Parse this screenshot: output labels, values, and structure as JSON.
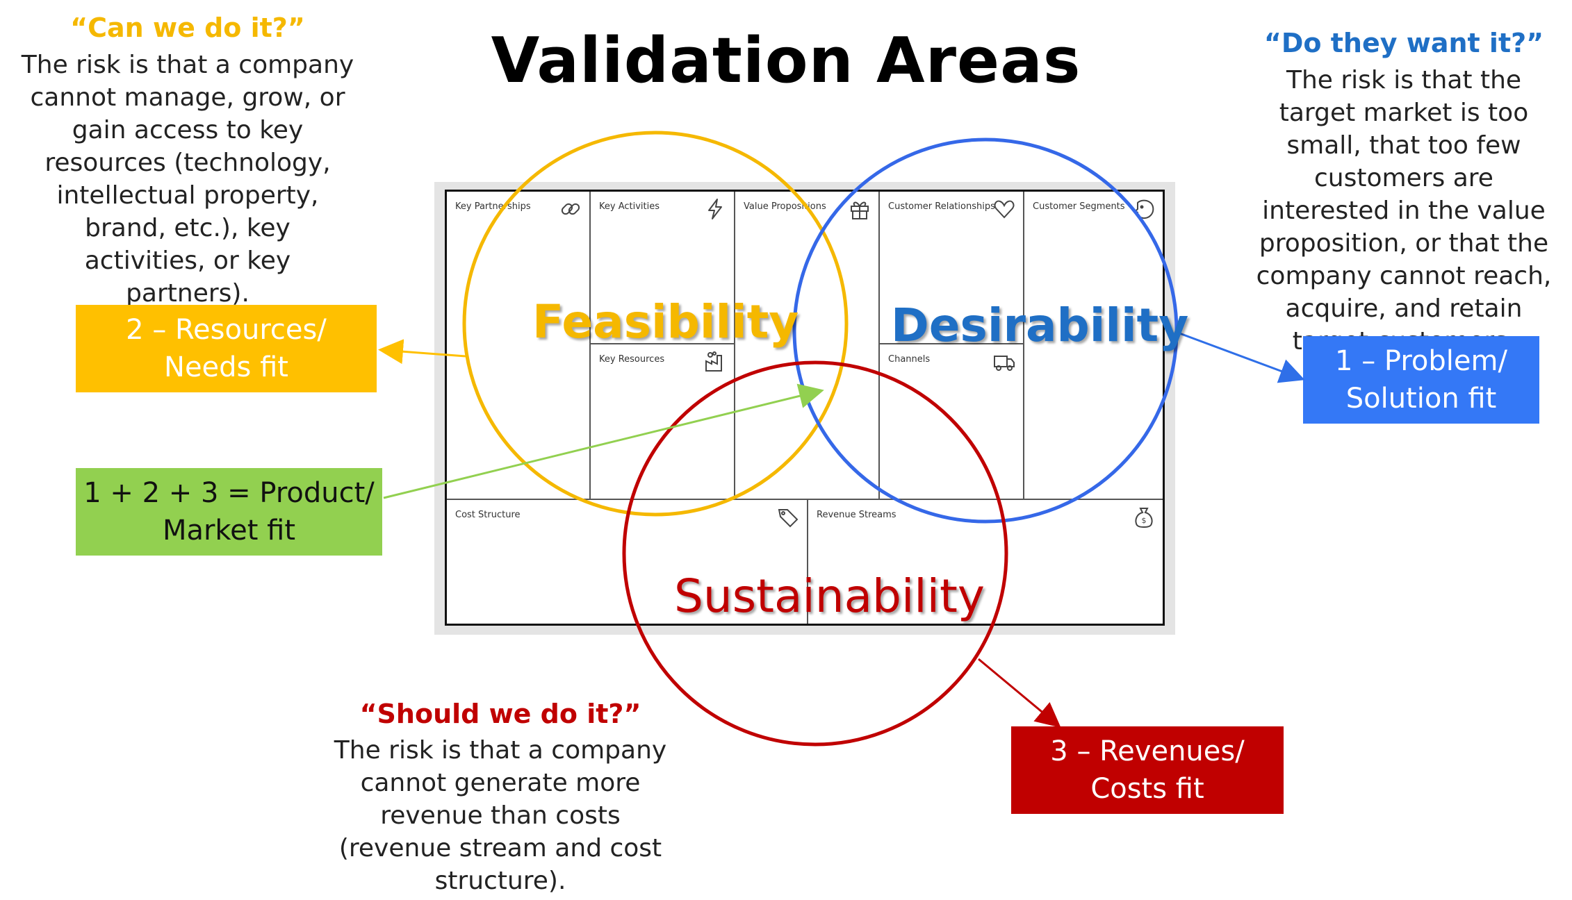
{
  "title": "Validation Areas",
  "feasibility": {
    "question": "“Can we do it?”",
    "description": "The risk is that a company cannot manage, grow, or gain access to key resources (technology, intellectual property, brand, etc.), key activities, or key partners).",
    "circle_label": "Feasibility",
    "fit_label": "2 – Resources/ Needs fit",
    "color": "#F5B800"
  },
  "desirability": {
    "question": "“Do they want it?”",
    "description": "The risk is that the target market is too small, that too few customers are interested in the value proposition, or that the company cannot reach, acquire, and retain target customers.",
    "circle_label": "Desirability",
    "fit_label": "1 – Problem/ Solution fit",
    "color": "#3568E8"
  },
  "sustainability": {
    "question": "“Should we do it?”",
    "description": "The risk is that a company cannot generate more revenue than costs (revenue stream and cost structure).",
    "circle_label": "Sustainability",
    "fit_label": "3 – Revenues/ Costs fit",
    "color": "#C00000"
  },
  "product_market": {
    "fit_label": "1 + 2 + 3 = Product/ Market fit",
    "color": "#92D050"
  },
  "canvas": {
    "key_partnerships": "Key Partnerships",
    "key_activities": "Key Activities",
    "value_propositions": "Value Propositions",
    "customer_relationships": "Customer Relationships",
    "customer_segments": "Customer Segments",
    "key_resources": "Key Resources",
    "channels": "Channels",
    "cost_structure": "Cost Structure",
    "revenue_streams": "Revenue Streams"
  },
  "icons": [
    "link-icon",
    "lightning-icon",
    "gift-icon",
    "heart-icon",
    "face-icon",
    "factory-icon",
    "truck-icon",
    "price-tag-icon",
    "money-bag-icon"
  ]
}
